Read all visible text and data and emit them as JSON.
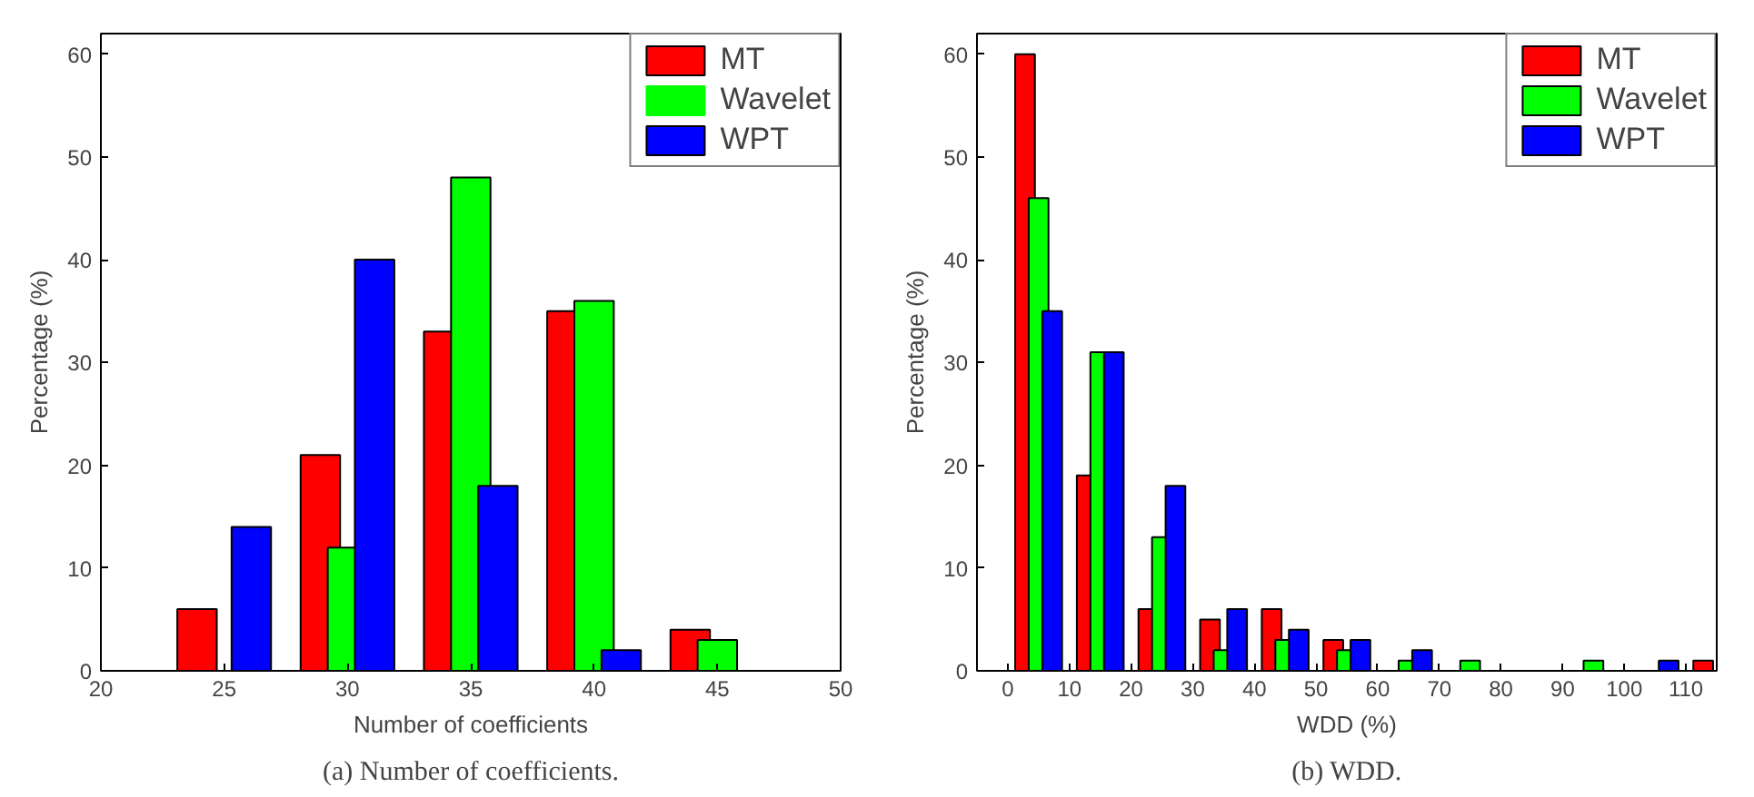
{
  "chart_data": [
    {
      "type": "bar",
      "xlabel": "Number of coefficients",
      "ylabel": "Percentage (%)",
      "x": [
        25,
        30,
        35,
        40,
        45
      ],
      "xlim": [
        20,
        50
      ],
      "xticks": [
        20,
        25,
        30,
        35,
        40,
        45,
        50
      ],
      "ylim": [
        0,
        62
      ],
      "yticks": [
        0,
        10,
        20,
        30,
        40,
        50,
        60
      ],
      "grid": false,
      "legend": "top right",
      "series": [
        {
          "name": "MT",
          "color": "#ff0000",
          "values": [
            6,
            21,
            33,
            35,
            4
          ]
        },
        {
          "name": "Wavelet",
          "color": "#00ff00",
          "values": [
            0,
            12,
            48,
            36,
            3
          ]
        },
        {
          "name": "WPT",
          "color": "#0000ff",
          "values": [
            14,
            40,
            18,
            2,
            0
          ]
        }
      ],
      "annotations": [
        "(a) Number of coefficients."
      ]
    },
    {
      "type": "bar",
      "xlabel": "WDD (%)",
      "ylabel": "Percentage (%)",
      "x": [
        5,
        15,
        25,
        35,
        45,
        55,
        65,
        75,
        85,
        95,
        105,
        115
      ],
      "xlim": [
        -5,
        115
      ],
      "xticks": [
        0,
        10,
        20,
        30,
        40,
        50,
        60,
        70,
        80,
        90,
        100,
        110
      ],
      "ylim": [
        0,
        62
      ],
      "yticks": [
        0,
        10,
        20,
        30,
        40,
        50,
        60
      ],
      "grid": false,
      "legend": "top right",
      "series": [
        {
          "name": "MT",
          "color": "#ff0000",
          "values": [
            60,
            19,
            6,
            5,
            6,
            3,
            0,
            0,
            0,
            0,
            0,
            1
          ]
        },
        {
          "name": "Wavelet",
          "color": "#00ff00",
          "values": [
            46,
            31,
            13,
            2,
            3,
            2,
            1,
            1,
            0,
            1,
            0,
            null
          ]
        },
        {
          "name": "WPT",
          "color": "#0000ff",
          "values": [
            35,
            31,
            18,
            6,
            4,
            3,
            2,
            0,
            0,
            0,
            1,
            null
          ]
        }
      ],
      "annotations": [
        "(b) WDD."
      ]
    }
  ]
}
